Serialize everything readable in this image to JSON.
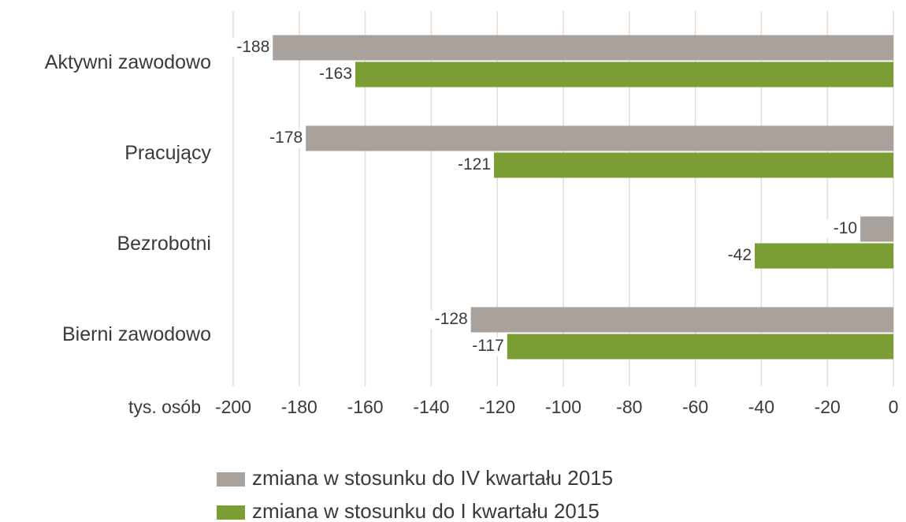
{
  "chart_data": {
    "type": "bar",
    "orientation": "horizontal",
    "categories": [
      "Aktywni zawodowo",
      "Pracujący",
      "Bezrobotni",
      "Bierni zawodowo"
    ],
    "series": [
      {
        "name": "zmiana w stosunku do IV kwartału 2015",
        "color": "#a9a19c",
        "values": [
          -188,
          -178,
          -10,
          -128
        ]
      },
      {
        "name": "zmiana w stosunku do I kwartału 2015",
        "color": "#7a9e34",
        "values": [
          -163,
          -121,
          -42,
          -117
        ]
      }
    ],
    "xlabel": "tys. osób",
    "xlim": [
      -200,
      0
    ],
    "xticks": [
      -200,
      -180,
      -160,
      -140,
      -120,
      -100,
      -80,
      -60,
      -40,
      -20,
      0
    ],
    "grid": true
  }
}
